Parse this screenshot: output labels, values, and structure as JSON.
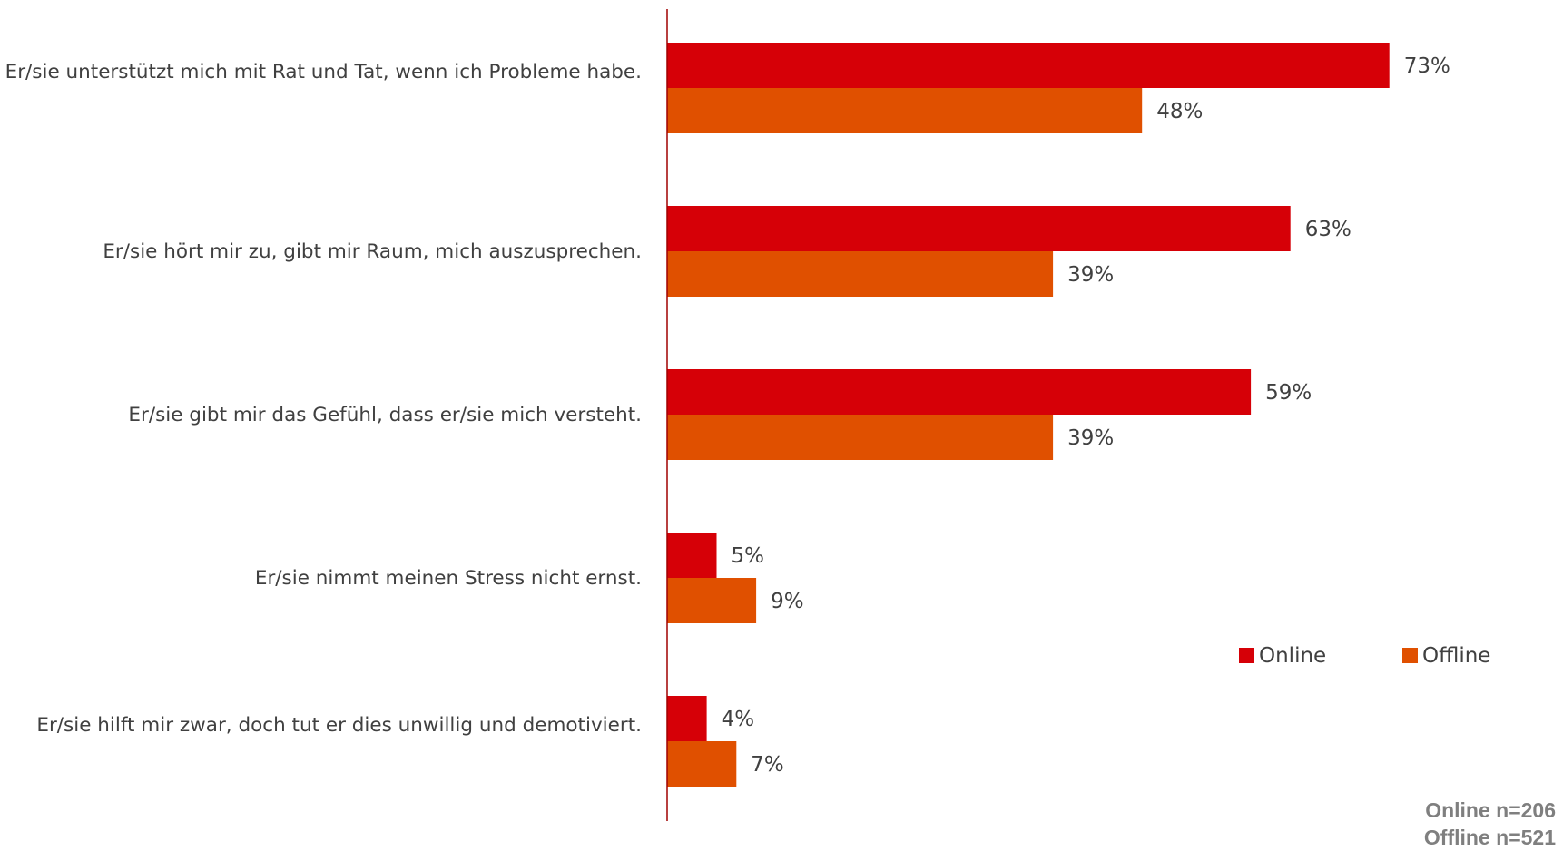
{
  "chart_data": {
    "type": "bar",
    "orientation": "horizontal",
    "categories": [
      "Er/sie unterstützt mich mit Rat und Tat, wenn ich Probleme habe.",
      "Er/sie hört mir zu, gibt mir Raum, mich auszusprechen.",
      "Er/sie gibt mir das Gefühl, dass er/sie mich versteht.",
      "Er/sie nimmt meinen Stress nicht ernst.",
      "Er/sie hilft mir zwar, doch tut er dies unwillig und demotiviert."
    ],
    "series": [
      {
        "name": "Online",
        "color": "#d60007",
        "values": [
          73,
          63,
          59,
          5,
          4
        ],
        "labels": [
          "73%",
          "63%",
          "59%",
          "5%",
          "4%"
        ]
      },
      {
        "name": "Offline",
        "color": "#e05000",
        "values": [
          48,
          39,
          39,
          9,
          7
        ],
        "labels": [
          "48%",
          "39%",
          "39%",
          "9%",
          "7%"
        ]
      }
    ],
    "legend": {
      "position": "bottom-right",
      "items": [
        "Online",
        "Offline"
      ]
    },
    "grid": false,
    "xlim": [
      0,
      100
    ]
  },
  "notes": {
    "online_n": "Online n=206",
    "offline_n": "Offline n=521"
  }
}
